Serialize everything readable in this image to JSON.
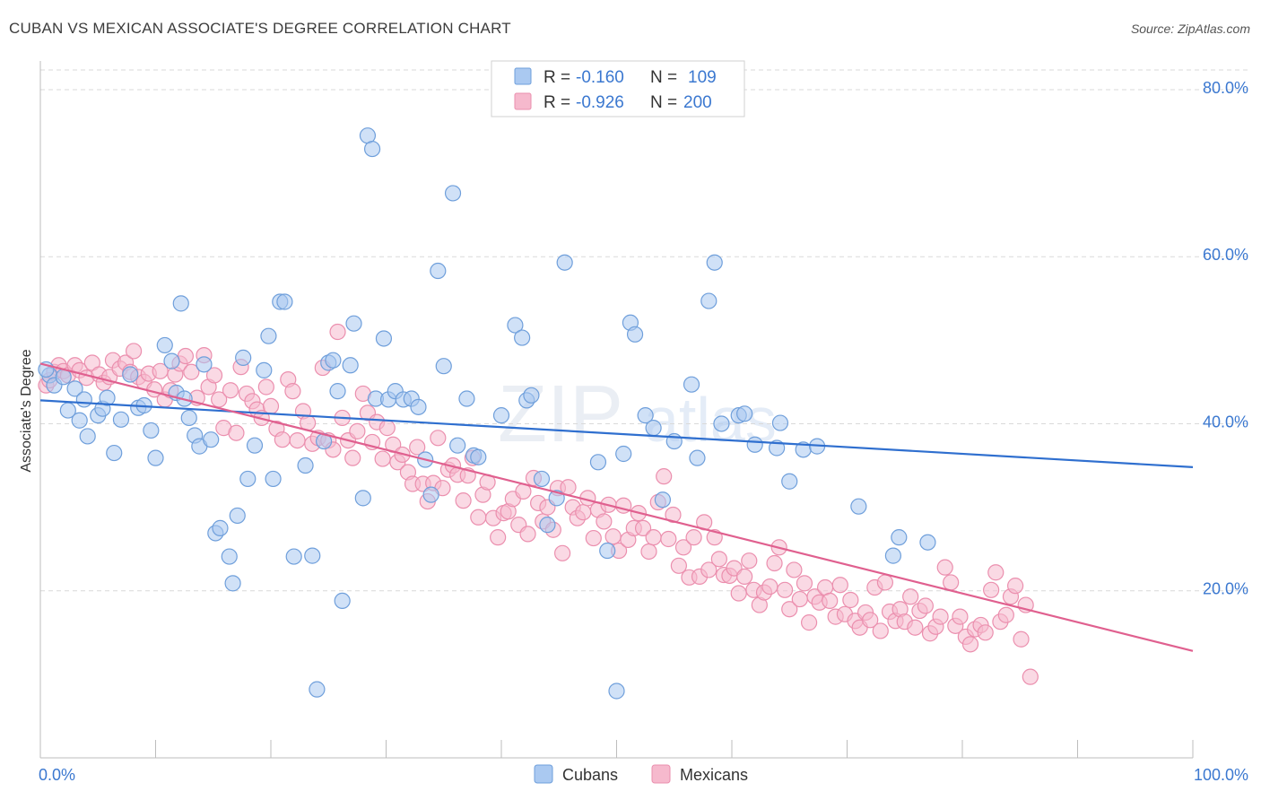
{
  "title": "CUBAN VS MEXICAN ASSOCIATE'S DEGREE CORRELATION CHART",
  "source": "Source: ZipAtlas.com",
  "watermark": {
    "zip": "ZIP",
    "atlas": "atlas"
  },
  "colors": {
    "cubans_fill": "#aac9f1",
    "cubans_stroke": "#6f9fdb",
    "cubans_line": "#2f6fcf",
    "mexicans_fill": "#f6b9cd",
    "mexicans_stroke": "#eb8fae",
    "mexicans_line": "#e0608f",
    "axis_text": "#3b78d0",
    "grid": "#d9d9d9"
  },
  "legend_top": {
    "cubans": {
      "r_label": "R =",
      "r_value": "-0.160",
      "n_label": "N =",
      "n_value": "109"
    },
    "mexicans": {
      "r_label": "R =",
      "r_value": "-0.926",
      "n_label": "N =",
      "n_value": "200"
    }
  },
  "chart_data": {
    "type": "scatter",
    "title": "CUBAN VS MEXICAN ASSOCIATE'S DEGREE CORRELATION CHART",
    "xlabel": "",
    "ylabel": "Associate's Degree",
    "xlim": [
      0,
      100
    ],
    "ylim": [
      0,
      83
    ],
    "x_tick_labels": [
      "0.0%",
      "100.0%"
    ],
    "y_ticks": [
      20,
      40,
      60,
      80
    ],
    "y_tick_labels": [
      "20.0%",
      "40.0%",
      "60.0%",
      "80.0%"
    ],
    "grid": true,
    "legend_position": "bottom-center",
    "series": [
      {
        "name": "Cubans",
        "trend": {
          "x": [
            0,
            100
          ],
          "y": [
            42.8,
            34.8
          ]
        },
        "points": [
          [
            0.8,
            45.8
          ],
          [
            1.2,
            44.6
          ],
          [
            0.5,
            46.5
          ],
          [
            2.0,
            45.6
          ],
          [
            3.0,
            44.2
          ],
          [
            3.8,
            42.9
          ],
          [
            2.4,
            41.6
          ],
          [
            3.4,
            40.4
          ],
          [
            4.1,
            38.5
          ],
          [
            5.0,
            41.0
          ],
          [
            5.4,
            41.8
          ],
          [
            5.8,
            43.1
          ],
          [
            6.4,
            36.5
          ],
          [
            7.0,
            40.5
          ],
          [
            7.8,
            45.9
          ],
          [
            8.5,
            41.9
          ],
          [
            9.0,
            42.2
          ],
          [
            9.6,
            39.2
          ],
          [
            10.0,
            35.9
          ],
          [
            10.8,
            49.4
          ],
          [
            11.4,
            47.5
          ],
          [
            11.8,
            43.7
          ],
          [
            12.2,
            54.4
          ],
          [
            12.5,
            43.0
          ],
          [
            12.9,
            40.7
          ],
          [
            13.4,
            38.6
          ],
          [
            13.8,
            37.3
          ],
          [
            14.2,
            47.1
          ],
          [
            14.8,
            38.1
          ],
          [
            15.2,
            26.9
          ],
          [
            15.6,
            27.5
          ],
          [
            16.4,
            24.1
          ],
          [
            16.7,
            20.9
          ],
          [
            17.1,
            29.0
          ],
          [
            17.6,
            47.9
          ],
          [
            18.0,
            33.4
          ],
          [
            18.6,
            37.4
          ],
          [
            19.4,
            46.4
          ],
          [
            19.8,
            50.5
          ],
          [
            20.2,
            33.4
          ],
          [
            20.8,
            54.6
          ],
          [
            21.2,
            54.6
          ],
          [
            22.0,
            24.1
          ],
          [
            23.0,
            35.0
          ],
          [
            23.6,
            24.2
          ],
          [
            24.0,
            8.2
          ],
          [
            24.6,
            37.9
          ],
          [
            25.0,
            47.3
          ],
          [
            25.4,
            47.6
          ],
          [
            25.8,
            43.9
          ],
          [
            26.2,
            18.8
          ],
          [
            26.9,
            47.0
          ],
          [
            27.2,
            52.0
          ],
          [
            28.0,
            31.1
          ],
          [
            28.4,
            74.5
          ],
          [
            28.8,
            72.9
          ],
          [
            29.1,
            43.0
          ],
          [
            29.8,
            50.2
          ],
          [
            30.2,
            42.9
          ],
          [
            30.8,
            43.9
          ],
          [
            31.5,
            42.9
          ],
          [
            32.2,
            43.0
          ],
          [
            32.8,
            42.0
          ],
          [
            33.4,
            35.7
          ],
          [
            33.9,
            31.5
          ],
          [
            34.5,
            58.3
          ],
          [
            35.0,
            46.9
          ],
          [
            35.8,
            67.6
          ],
          [
            36.2,
            37.4
          ],
          [
            37.0,
            43.0
          ],
          [
            37.6,
            36.2
          ],
          [
            38.0,
            36.0
          ],
          [
            40.0,
            41.0
          ],
          [
            41.2,
            51.8
          ],
          [
            41.8,
            50.3
          ],
          [
            42.2,
            42.8
          ],
          [
            42.6,
            43.4
          ],
          [
            43.5,
            33.4
          ],
          [
            44.0,
            27.9
          ],
          [
            44.8,
            31.1
          ],
          [
            45.5,
            59.3
          ],
          [
            48.4,
            35.4
          ],
          [
            49.2,
            24.8
          ],
          [
            50.0,
            8.0
          ],
          [
            50.6,
            36.4
          ],
          [
            51.2,
            52.1
          ],
          [
            51.6,
            50.7
          ],
          [
            52.5,
            41.0
          ],
          [
            53.2,
            39.5
          ],
          [
            54.0,
            30.9
          ],
          [
            55.0,
            37.9
          ],
          [
            56.5,
            44.7
          ],
          [
            57.0,
            35.9
          ],
          [
            58.0,
            54.7
          ],
          [
            58.5,
            59.3
          ],
          [
            59.1,
            40.0
          ],
          [
            60.6,
            41.0
          ],
          [
            61.1,
            41.2
          ],
          [
            62.0,
            37.5
          ],
          [
            63.9,
            37.1
          ],
          [
            65.0,
            33.1
          ],
          [
            64.2,
            40.1
          ],
          [
            66.2,
            36.9
          ],
          [
            67.4,
            37.3
          ],
          [
            71.0,
            30.1
          ],
          [
            74.0,
            24.2
          ],
          [
            74.5,
            26.4
          ],
          [
            77.0,
            25.8
          ]
        ]
      },
      {
        "name": "Mexicans",
        "trend": {
          "x": [
            0,
            100
          ],
          "y": [
            47.2,
            12.8
          ]
        },
        "points": [
          [
            0.5,
            44.6
          ],
          [
            0.8,
            45.2
          ],
          [
            1.2,
            46.2
          ],
          [
            1.6,
            47.0
          ],
          [
            2.0,
            46.3
          ],
          [
            2.4,
            45.8
          ],
          [
            3.0,
            47.0
          ],
          [
            3.4,
            46.4
          ],
          [
            4.0,
            45.5
          ],
          [
            4.5,
            47.3
          ],
          [
            5.1,
            45.9
          ],
          [
            5.5,
            44.9
          ],
          [
            6.0,
            45.6
          ],
          [
            6.3,
            47.6
          ],
          [
            6.9,
            46.6
          ],
          [
            7.4,
            47.3
          ],
          [
            7.8,
            46.2
          ],
          [
            8.1,
            48.7
          ],
          [
            8.5,
            45.6
          ],
          [
            9.0,
            45.0
          ],
          [
            9.4,
            46.0
          ],
          [
            9.9,
            44.1
          ],
          [
            10.4,
            46.3
          ],
          [
            10.8,
            42.9
          ],
          [
            11.3,
            44.0
          ],
          [
            11.7,
            45.9
          ],
          [
            12.1,
            47.2
          ],
          [
            12.6,
            48.1
          ],
          [
            13.1,
            46.2
          ],
          [
            13.6,
            43.1
          ],
          [
            14.2,
            48.2
          ],
          [
            14.6,
            44.4
          ],
          [
            15.1,
            45.8
          ],
          [
            15.5,
            42.9
          ],
          [
            15.9,
            39.5
          ],
          [
            16.5,
            44.0
          ],
          [
            17.0,
            38.9
          ],
          [
            17.4,
            46.8
          ],
          [
            17.9,
            43.6
          ],
          [
            18.4,
            42.7
          ],
          [
            18.8,
            41.7
          ],
          [
            19.2,
            40.7
          ],
          [
            19.6,
            44.4
          ],
          [
            20.0,
            42.1
          ],
          [
            20.5,
            39.4
          ],
          [
            21.0,
            38.1
          ],
          [
            21.5,
            45.3
          ],
          [
            21.9,
            43.9
          ],
          [
            22.3,
            38.0
          ],
          [
            22.8,
            41.5
          ],
          [
            23.2,
            40.1
          ],
          [
            23.6,
            37.6
          ],
          [
            24.1,
            38.3
          ],
          [
            24.5,
            46.7
          ],
          [
            25.0,
            38.0
          ],
          [
            25.4,
            36.9
          ],
          [
            25.8,
            51.0
          ],
          [
            26.2,
            40.7
          ],
          [
            26.7,
            38.0
          ],
          [
            27.1,
            35.9
          ],
          [
            27.5,
            39.1
          ],
          [
            28.0,
            43.6
          ],
          [
            28.4,
            41.3
          ],
          [
            28.8,
            37.8
          ],
          [
            29.2,
            40.2
          ],
          [
            29.7,
            35.8
          ],
          [
            30.1,
            39.5
          ],
          [
            30.6,
            37.5
          ],
          [
            31.0,
            35.4
          ],
          [
            31.4,
            36.3
          ],
          [
            31.9,
            34.2
          ],
          [
            32.3,
            32.8
          ],
          [
            32.7,
            37.2
          ],
          [
            33.2,
            32.8
          ],
          [
            33.6,
            30.7
          ],
          [
            34.1,
            32.9
          ],
          [
            34.5,
            38.3
          ],
          [
            34.9,
            32.3
          ],
          [
            35.4,
            34.5
          ],
          [
            35.8,
            35.0
          ],
          [
            36.2,
            33.9
          ],
          [
            36.7,
            30.8
          ],
          [
            37.1,
            33.8
          ],
          [
            37.5,
            35.9
          ],
          [
            38.0,
            28.8
          ],
          [
            38.4,
            31.5
          ],
          [
            38.8,
            33.0
          ],
          [
            39.3,
            28.7
          ],
          [
            39.7,
            26.4
          ],
          [
            40.2,
            29.3
          ],
          [
            40.6,
            29.5
          ],
          [
            41.0,
            31.0
          ],
          [
            41.5,
            27.9
          ],
          [
            41.9,
            31.9
          ],
          [
            42.3,
            26.8
          ],
          [
            42.8,
            33.5
          ],
          [
            43.2,
            30.5
          ],
          [
            43.6,
            28.3
          ],
          [
            44.0,
            30.0
          ],
          [
            44.5,
            27.3
          ],
          [
            44.9,
            32.3
          ],
          [
            45.3,
            24.5
          ],
          [
            45.8,
            32.4
          ],
          [
            46.2,
            30.0
          ],
          [
            46.6,
            28.7
          ],
          [
            47.1,
            29.4
          ],
          [
            47.5,
            31.1
          ],
          [
            48.0,
            26.3
          ],
          [
            48.4,
            29.7
          ],
          [
            48.9,
            28.3
          ],
          [
            49.3,
            30.3
          ],
          [
            49.7,
            26.5
          ],
          [
            50.2,
            24.8
          ],
          [
            50.6,
            30.2
          ],
          [
            51.0,
            26.1
          ],
          [
            51.5,
            27.5
          ],
          [
            51.9,
            29.3
          ],
          [
            52.3,
            27.5
          ],
          [
            52.8,
            24.7
          ],
          [
            53.2,
            26.4
          ],
          [
            53.6,
            30.6
          ],
          [
            54.1,
            33.7
          ],
          [
            54.5,
            26.2
          ],
          [
            54.9,
            29.1
          ],
          [
            55.4,
            23.0
          ],
          [
            55.8,
            25.2
          ],
          [
            56.3,
            21.6
          ],
          [
            56.7,
            26.4
          ],
          [
            57.2,
            21.7
          ],
          [
            57.6,
            28.2
          ],
          [
            58.0,
            22.5
          ],
          [
            58.5,
            26.4
          ],
          [
            58.9,
            23.8
          ],
          [
            59.3,
            21.9
          ],
          [
            59.8,
            21.8
          ],
          [
            60.2,
            22.7
          ],
          [
            60.6,
            19.7
          ],
          [
            61.1,
            21.7
          ],
          [
            61.5,
            23.6
          ],
          [
            61.9,
            20.1
          ],
          [
            62.4,
            18.3
          ],
          [
            62.8,
            19.8
          ],
          [
            63.3,
            20.5
          ],
          [
            63.7,
            23.3
          ],
          [
            64.1,
            25.2
          ],
          [
            64.6,
            20.1
          ],
          [
            65.0,
            17.8
          ],
          [
            65.4,
            22.5
          ],
          [
            65.9,
            19.0
          ],
          [
            66.3,
            20.9
          ],
          [
            66.7,
            16.2
          ],
          [
            67.2,
            19.3
          ],
          [
            67.6,
            18.6
          ],
          [
            68.1,
            20.4
          ],
          [
            68.5,
            18.8
          ],
          [
            69.0,
            16.9
          ],
          [
            69.4,
            20.7
          ],
          [
            69.8,
            17.2
          ],
          [
            70.3,
            18.9
          ],
          [
            70.7,
            16.4
          ],
          [
            71.1,
            15.6
          ],
          [
            71.6,
            17.4
          ],
          [
            72.0,
            16.5
          ],
          [
            72.4,
            20.4
          ],
          [
            72.9,
            15.2
          ],
          [
            73.3,
            21.0
          ],
          [
            73.7,
            17.5
          ],
          [
            74.2,
            16.4
          ],
          [
            74.6,
            17.8
          ],
          [
            75.0,
            16.3
          ],
          [
            75.5,
            19.3
          ],
          [
            75.9,
            15.6
          ],
          [
            76.3,
            17.6
          ],
          [
            76.8,
            18.2
          ],
          [
            77.2,
            14.9
          ],
          [
            77.7,
            15.7
          ],
          [
            78.1,
            16.9
          ],
          [
            78.5,
            22.8
          ],
          [
            79.0,
            21.0
          ],
          [
            79.4,
            15.8
          ],
          [
            79.8,
            16.9
          ],
          [
            80.3,
            14.5
          ],
          [
            80.7,
            13.6
          ],
          [
            81.1,
            15.4
          ],
          [
            81.6,
            15.9
          ],
          [
            82.0,
            15.0
          ],
          [
            82.5,
            20.1
          ],
          [
            82.9,
            22.2
          ],
          [
            83.3,
            16.3
          ],
          [
            83.8,
            17.1
          ],
          [
            84.2,
            19.3
          ],
          [
            84.6,
            20.6
          ],
          [
            85.1,
            14.2
          ],
          [
            85.5,
            18.3
          ],
          [
            85.9,
            9.7
          ]
        ]
      }
    ]
  },
  "legend_bottom": [
    {
      "label": "Cubans"
    },
    {
      "label": "Mexicans"
    }
  ]
}
